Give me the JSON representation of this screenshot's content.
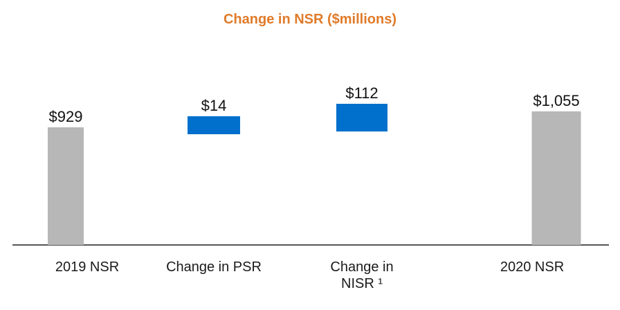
{
  "chart_data": {
    "type": "bar",
    "subtype": "waterfall",
    "title": "Change in NSR ($millions)",
    "categories": [
      "2019 NSR",
      "Change in PSR",
      "Change in NISR ¹",
      "2020 NSR"
    ],
    "values": [
      929,
      14,
      112,
      1055
    ],
    "value_labels": [
      "$929",
      "$14",
      "$112",
      "$1,055"
    ],
    "kinds": [
      "total",
      "increase",
      "increase",
      "total"
    ],
    "colors": {
      "total": "#b7b7b7",
      "increase": "#0070cc",
      "title": "#e07b2a",
      "axis": "#555555"
    },
    "legend": "none",
    "grid": false
  }
}
